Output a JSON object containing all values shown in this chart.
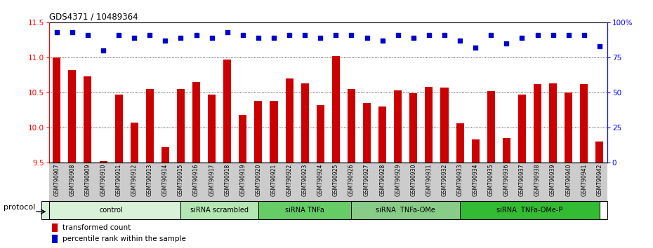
{
  "title": "GDS4371 / 10489364",
  "samples": [
    "GSM790907",
    "GSM790908",
    "GSM790909",
    "GSM790910",
    "GSM790911",
    "GSM790912",
    "GSM790913",
    "GSM790914",
    "GSM790915",
    "GSM790916",
    "GSM790917",
    "GSM790918",
    "GSM790919",
    "GSM790920",
    "GSM790921",
    "GSM790922",
    "GSM790923",
    "GSM790924",
    "GSM790925",
    "GSM790926",
    "GSM790927",
    "GSM790928",
    "GSM790929",
    "GSM790930",
    "GSM790931",
    "GSM790932",
    "GSM790933",
    "GSM790934",
    "GSM790935",
    "GSM790936",
    "GSM790937",
    "GSM790938",
    "GSM790939",
    "GSM790940",
    "GSM790941",
    "GSM790942"
  ],
  "bar_values": [
    11.0,
    10.82,
    10.73,
    9.52,
    10.47,
    10.07,
    10.55,
    9.72,
    10.55,
    10.65,
    10.47,
    10.97,
    10.18,
    10.38,
    10.38,
    10.7,
    10.63,
    10.32,
    11.02,
    10.55,
    10.35,
    10.3,
    10.53,
    10.49,
    10.58,
    10.57,
    10.06,
    9.83,
    10.52,
    9.85,
    10.47,
    10.62,
    10.63,
    10.5,
    10.62,
    9.8
  ],
  "percentile_values": [
    93,
    93,
    91,
    80,
    91,
    89,
    91,
    87,
    89,
    91,
    89,
    93,
    91,
    89,
    89,
    91,
    91,
    89,
    91,
    91,
    89,
    87,
    91,
    89,
    91,
    91,
    87,
    82,
    91,
    85,
    89,
    91,
    91,
    91,
    91,
    83
  ],
  "ylim_left": [
    9.5,
    11.5
  ],
  "ylim_right": [
    0,
    100
  ],
  "bar_color": "#cc0000",
  "dot_color": "#0000cc",
  "groups": [
    {
      "label": "control",
      "start": 0,
      "end": 8,
      "color": "#d9f0d9"
    },
    {
      "label": "siRNA scrambled",
      "start": 9,
      "end": 13,
      "color": "#b3e6b3"
    },
    {
      "label": "siRNA TNFa",
      "start": 14,
      "end": 19,
      "color": "#66cc66"
    },
    {
      "label": "siRNA  TNFa-OMe",
      "start": 20,
      "end": 26,
      "color": "#88cc88"
    },
    {
      "label": "siRNA  TNFa-OMe-P",
      "start": 27,
      "end": 35,
      "color": "#33bb33"
    }
  ],
  "yticks_left": [
    9.5,
    10.0,
    10.5,
    11.0,
    11.5
  ],
  "yticks_right": [
    0,
    25,
    50,
    75,
    100
  ],
  "ytick_labels_right": [
    "0",
    "25",
    "50",
    "75",
    "100%"
  ],
  "grid_lines": [
    10.0,
    10.5,
    11.0
  ],
  "bar_width": 0.5,
  "dot_size": 18,
  "legend_red_label": "transformed count",
  "legend_blue_label": "percentile rank within the sample",
  "protocol_label": "protocol"
}
